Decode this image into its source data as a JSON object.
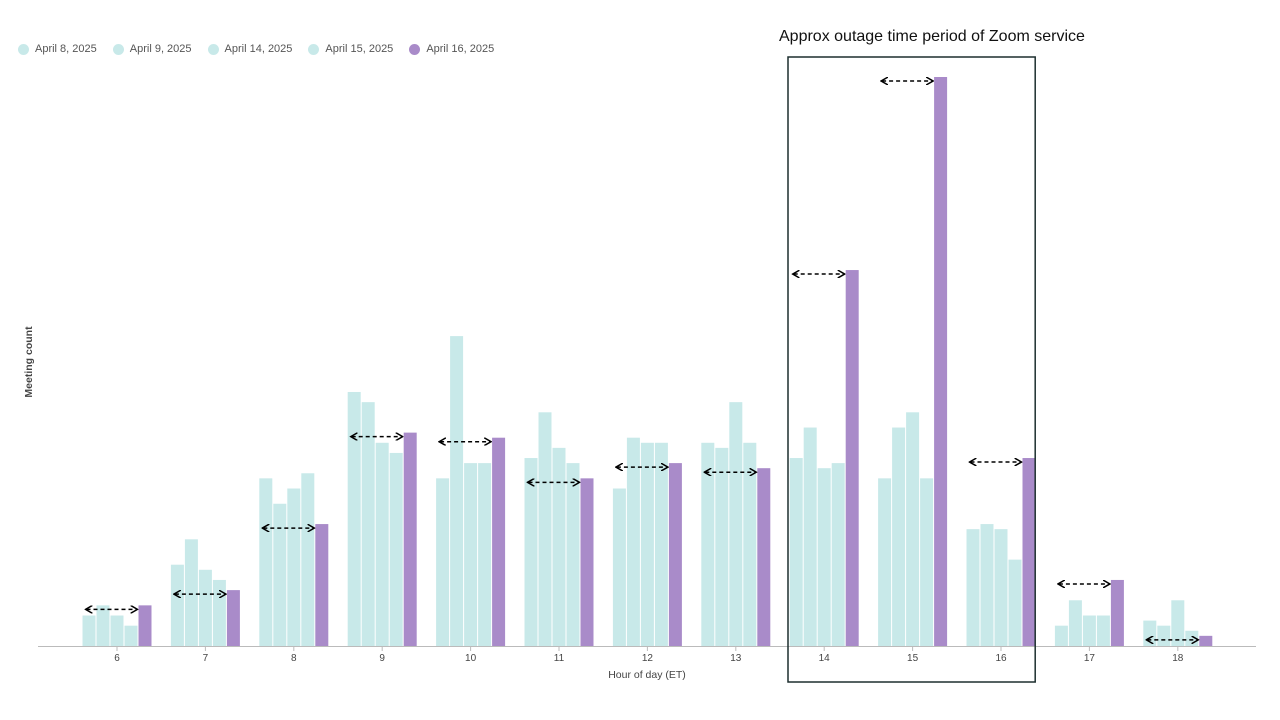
{
  "chart_data": {
    "type": "bar",
    "title": "",
    "xlabel": "Hour of day (ET)",
    "ylabel": "Meeting count",
    "categories": [
      "6",
      "7",
      "8",
      "9",
      "10",
      "11",
      "12",
      "13",
      "14",
      "15",
      "16",
      "17",
      "18"
    ],
    "ylim": [
      0,
      115
    ],
    "series": [
      {
        "name": "April 8, 2025",
        "color": "#c8e9e9",
        "values": [
          6,
          16,
          33,
          50,
          33,
          37,
          31,
          40,
          37,
          33,
          23,
          4,
          5
        ]
      },
      {
        "name": "April 9, 2025",
        "color": "#c8e9e9",
        "values": [
          8,
          21,
          28,
          48,
          61,
          46,
          41,
          39,
          43,
          43,
          24,
          9,
          4
        ]
      },
      {
        "name": "April 14, 2025",
        "color": "#c8e9e9",
        "values": [
          6,
          15,
          31,
          40,
          36,
          39,
          40,
          48,
          35,
          46,
          23,
          6,
          9
        ]
      },
      {
        "name": "April 15, 2025",
        "color": "#c8e9e9",
        "values": [
          4,
          13,
          34,
          38,
          36,
          36,
          40,
          40,
          36,
          33,
          17,
          6,
          3
        ]
      },
      {
        "name": "April 16, 2025",
        "color": "#a98bc9",
        "values": [
          8,
          11,
          24,
          42,
          41,
          33,
          36,
          35,
          74,
          112,
          37,
          13,
          2
        ]
      }
    ],
    "highlight": {
      "label": "Approx outage time period of Zoom service",
      "from": "14",
      "to": "16"
    },
    "arrow_annotations": true
  }
}
